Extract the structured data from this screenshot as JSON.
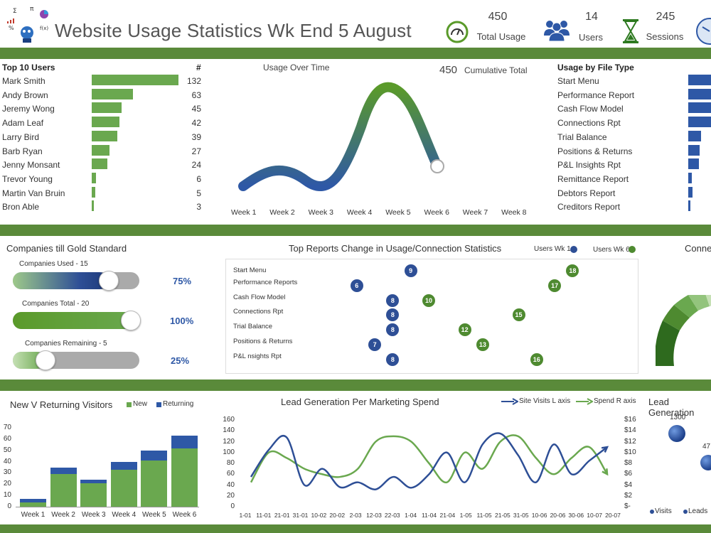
{
  "header": {
    "title": "Website Usage Statistics Wk End 5 August",
    "kpis": [
      {
        "value": "450",
        "label": "Total Usage",
        "icon": "gauge-icon"
      },
      {
        "value": "14",
        "label": "Users",
        "icon": "users-icon"
      },
      {
        "value": "245",
        "label": "Sessions",
        "icon": "hourglass-icon"
      }
    ]
  },
  "top_users": {
    "title": "Top 10 Users",
    "count_header": "#",
    "max": 132,
    "rows": [
      {
        "name": "Mark Smith",
        "value": 132
      },
      {
        "name": "Andy Brown",
        "value": 63
      },
      {
        "name": "Jeremy Wong",
        "value": 45
      },
      {
        "name": "Adam Leaf",
        "value": 42
      },
      {
        "name": "Larry Bird",
        "value": 39
      },
      {
        "name": "Barb Ryan",
        "value": 27
      },
      {
        "name": "Jenny Monsant",
        "value": 24
      },
      {
        "name": "Trevor Young",
        "value": 6
      },
      {
        "name": "Martin Van Bruin",
        "value": 5
      },
      {
        "name": "Bron Able",
        "value": 3
      }
    ]
  },
  "usage_over_time": {
    "title": "Usage Over Time",
    "cumulative_value": "450",
    "cumulative_label": "Cumulative Total",
    "weeks": [
      "Week 1",
      "Week 2",
      "Week 3",
      "Week 4",
      "Week 5",
      "Week 6",
      "Week 7",
      "Week 8"
    ]
  },
  "file_types": {
    "title": "Usage by File Type",
    "rows": [
      {
        "name": "Start Menu",
        "value": 100
      },
      {
        "name": "Performance Report",
        "value": 100
      },
      {
        "name": "Cash Flow Model",
        "value": 100
      },
      {
        "name": "Connections Rpt",
        "value": 100
      },
      {
        "name": "Trial Balance",
        "value": 55
      },
      {
        "name": "Positions & Returns",
        "value": 50
      },
      {
        "name": "P&L Insights Rpt",
        "value": 48
      },
      {
        "name": "Remittance Report",
        "value": 15
      },
      {
        "name": "Debtors Report",
        "value": 20
      },
      {
        "name": "Creditors Report",
        "value": 10
      }
    ]
  },
  "gold": {
    "title": "Companies till Gold Standard",
    "sliders": [
      {
        "label": "Companies Used - 15",
        "pct": "75%",
        "level": 0.75
      },
      {
        "label": "Companies Total - 20",
        "pct": "100%",
        "level": 1.0
      },
      {
        "label": "Companies Remaining - 5",
        "pct": "25%",
        "level": 0.25
      }
    ]
  },
  "top_reports": {
    "title": "Top Reports Change in Usage/Connection Statistics",
    "legend_wk1": "Users Wk 1",
    "legend_wk6": "Users Wk 6",
    "rows": [
      {
        "name": "Start Menu",
        "wk1": 9,
        "wk6": 18
      },
      {
        "name": "Performance Reports",
        "wk1": 6,
        "wk6": 17
      },
      {
        "name": "Cash Flow Model",
        "wk1": 8,
        "wk6": 10
      },
      {
        "name": "Connections Rpt",
        "wk1": 8,
        "wk6": 15
      },
      {
        "name": "Trial Balance",
        "wk1": 8,
        "wk6": 12
      },
      {
        "name": "Positions & Returns",
        "wk1": 7,
        "wk6": 13
      },
      {
        "name": "P&L nsights Rpt",
        "wk1": 8,
        "wk6": 16
      }
    ]
  },
  "connections_title": "Connec",
  "visitors": {
    "title": "New V Returning Visitors",
    "legend_new": "New",
    "legend_returning": "Returning",
    "categories": [
      "Week 1",
      "Week 2",
      "Week 3",
      "Week 4",
      "Week 5",
      "Week 6"
    ],
    "new": [
      4,
      29,
      21,
      33,
      41,
      52
    ],
    "returning": [
      3,
      6,
      3,
      7,
      9,
      11
    ],
    "yticks": [
      "0",
      "10",
      "20",
      "30",
      "40",
      "50",
      "60",
      "70"
    ]
  },
  "lead_gen": {
    "title": "Lead Generation Per Marketing Spend",
    "legend_visits": "Site Visits L axis",
    "legend_spend": "Spend R axis",
    "left_ticks": [
      "0",
      "20",
      "40",
      "60",
      "80",
      "100",
      "120",
      "140",
      "160"
    ],
    "right_ticks": [
      "$-",
      "$2",
      "$4",
      "$6",
      "$8",
      "$10",
      "$12",
      "$14",
      "$16"
    ],
    "x_labels": [
      "1-01",
      "11-01",
      "21-01",
      "31-01",
      "10-02",
      "20-02",
      "2-03",
      "12-03",
      "22-03",
      "1-04",
      "11-04",
      "21-04",
      "1-05",
      "11-05",
      "21-05",
      "31-05",
      "10-06",
      "20-06",
      "30-06",
      "10-07",
      "20-07"
    ],
    "visits": [
      55,
      105,
      128,
      40,
      70,
      36,
      45,
      32,
      55,
      35,
      60,
      100,
      45,
      115,
      135,
      95,
      45,
      115,
      60,
      85,
      110
    ],
    "spend": [
      4.5,
      10,
      9,
      7,
      6,
      5.5,
      7,
      12,
      13,
      12,
      8,
      4.5,
      10,
      7,
      12,
      13,
      9,
      6,
      9,
      11,
      6
    ]
  },
  "lead_gen2": {
    "title": "Lead Generation",
    "value1": "1300",
    "value2": "47",
    "legend_visits": "Visits",
    "legend_leads": "Leads"
  },
  "colors": {
    "green": "#6aa84f",
    "blue": "#2e58a6",
    "band": "#5a8a3a"
  }
}
